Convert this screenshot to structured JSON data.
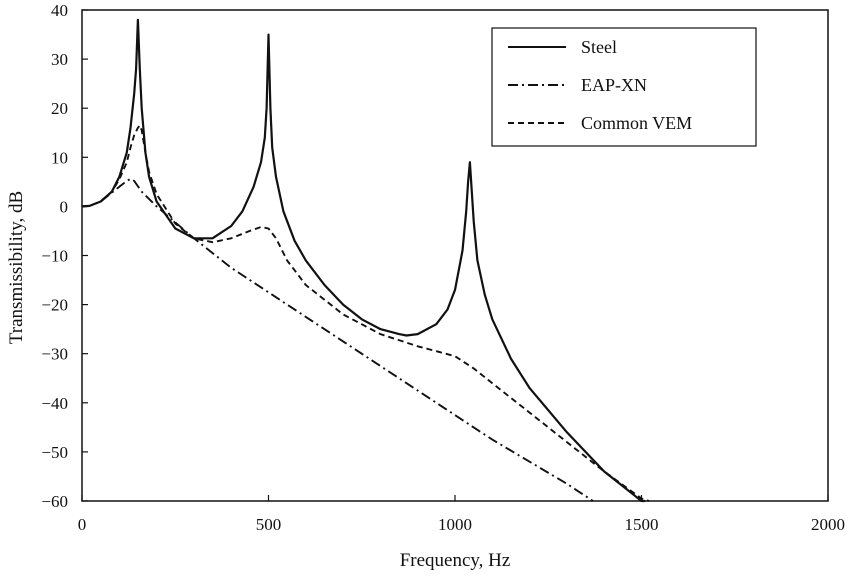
{
  "chart_data": {
    "type": "line",
    "title": "",
    "xlabel": "Frequency, Hz",
    "ylabel": "Transmissibility, dB",
    "xlim": [
      0,
      2000
    ],
    "ylim": [
      -60,
      40
    ],
    "xticks": [
      0,
      500,
      1000,
      1500,
      2000
    ],
    "yticks": [
      40,
      30,
      20,
      10,
      0,
      -10,
      -20,
      -30,
      -40,
      -50,
      -60
    ],
    "grid": false,
    "legend_position": "top-right",
    "series": [
      {
        "name": "Steel",
        "style": "solid",
        "x": [
          0,
          20,
          50,
          80,
          100,
          120,
          130,
          140,
          145,
          150,
          155,
          160,
          170,
          180,
          200,
          250,
          300,
          350,
          400,
          430,
          460,
          480,
          490,
          495,
          500,
          505,
          510,
          520,
          540,
          570,
          600,
          650,
          700,
          750,
          800,
          850,
          870,
          900,
          950,
          980,
          1000,
          1020,
          1030,
          1035,
          1040,
          1045,
          1050,
          1060,
          1080,
          1100,
          1150,
          1200,
          1300,
          1400,
          1450,
          1500,
          1510
        ],
        "y": [
          0,
          0.1,
          1,
          3,
          6,
          11,
          16,
          23,
          28,
          38,
          28,
          20,
          11,
          6,
          1,
          -4.5,
          -6.5,
          -6.5,
          -4,
          -1,
          4,
          9,
          14,
          20,
          35,
          20,
          12,
          6,
          -1,
          -7,
          -11,
          -16,
          -20,
          -23,
          -25,
          -26,
          -26.3,
          -26,
          -24,
          -21,
          -17,
          -9,
          -1,
          5,
          9,
          3,
          -3,
          -11,
          -18,
          -23,
          -31,
          -37,
          -46,
          -54,
          -57,
          -60,
          -60.5
        ]
      },
      {
        "name": "EAP-XN",
        "style": "dash-dot",
        "x": [
          0,
          20,
          50,
          80,
          100,
          120,
          130,
          140,
          160,
          200,
          300,
          400,
          500,
          600,
          700,
          800,
          900,
          1000,
          1100,
          1200,
          1300,
          1370
        ],
        "y": [
          0,
          0.1,
          1,
          2.8,
          4,
          5.2,
          5.6,
          5.2,
          3,
          0,
          -6.5,
          -12.5,
          -17.5,
          -22.5,
          -27.5,
          -32.5,
          -37.5,
          -42.5,
          -47.5,
          -52,
          -56.5,
          -60
        ]
      },
      {
        "name": "Common VEM",
        "style": "dashed",
        "x": [
          0,
          20,
          50,
          80,
          100,
          120,
          130,
          140,
          150,
          155,
          160,
          170,
          180,
          200,
          250,
          300,
          350,
          400,
          450,
          480,
          500,
          520,
          550,
          600,
          700,
          800,
          900,
          950,
          1000,
          1050,
          1100,
          1150,
          1200,
          1300,
          1400,
          1500,
          1520
        ],
        "y": [
          0,
          0.1,
          1,
          3,
          5.5,
          9,
          12,
          14.5,
          16,
          16.5,
          15.5,
          11,
          7,
          2.5,
          -3.5,
          -6.5,
          -7.3,
          -6.5,
          -5,
          -4.2,
          -4.5,
          -6.5,
          -11,
          -16,
          -22,
          -26,
          -28.5,
          -29.5,
          -30.5,
          -33,
          -36,
          -39,
          -42,
          -48,
          -54,
          -59.5,
          -61
        ]
      }
    ]
  }
}
